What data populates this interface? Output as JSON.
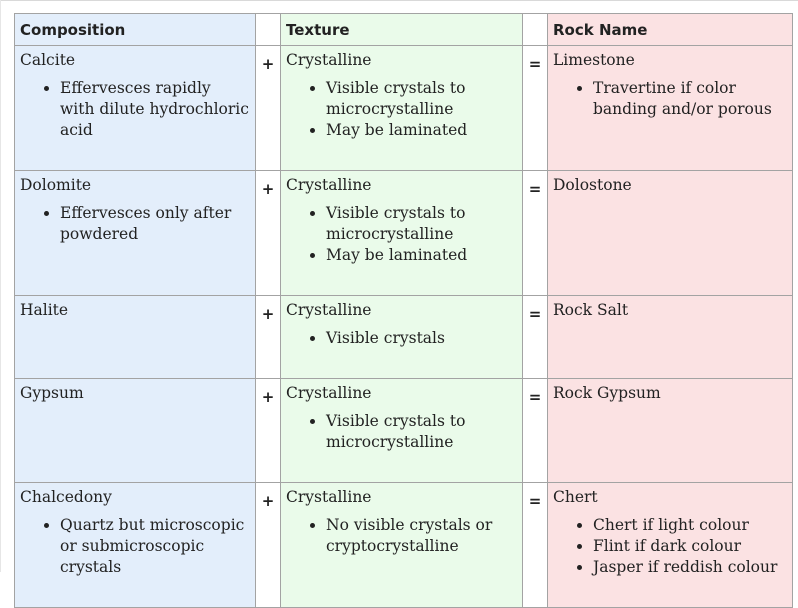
{
  "headers": {
    "composition": "Composition",
    "texture": "Texture",
    "rock_name": "Rock Name"
  },
  "operators": {
    "plus": "+",
    "equals": "="
  },
  "rows": [
    {
      "composition": "Calcite",
      "composition_notes": [
        "Effervesces rapidly with dilute hydrochloric acid"
      ],
      "texture": "Crystalline",
      "texture_notes": [
        "Visible crystals to microcrystalline",
        "May be laminated"
      ],
      "rock": "Limestone",
      "rock_notes": [
        "Travertine if color banding and/or porous"
      ]
    },
    {
      "composition": "Dolomite",
      "composition_notes": [
        "Effervesces only after powdered"
      ],
      "texture": "Crystalline",
      "texture_notes": [
        "Visible crystals to microcrystalline",
        "May be laminated"
      ],
      "rock": "Dolostone",
      "rock_notes": []
    },
    {
      "composition": "Halite",
      "composition_notes": [],
      "texture": "Crystalline",
      "texture_notes": [
        "Visible crystals"
      ],
      "rock": "Rock Salt",
      "rock_notes": []
    },
    {
      "composition": "Gypsum",
      "composition_notes": [],
      "texture": "Crystalline",
      "texture_notes": [
        "Visible crystals to microcrystalline"
      ],
      "rock": "Rock Gypsum",
      "rock_notes": []
    },
    {
      "composition": "Chalcedony",
      "composition_notes": [
        "Quartz but microscopic or submicroscopic crystals"
      ],
      "texture": "Crystalline",
      "texture_notes": [
        "No visible crystals or cryptocrystalline"
      ],
      "rock": "Chert",
      "rock_notes": [
        "Chert if light colour",
        "Flint if dark colour",
        "Jasper if reddish colour"
      ]
    }
  ],
  "colors": {
    "composition_bg": "#e3eefb",
    "texture_bg": "#eafbea",
    "rock_bg": "#fbe2e3",
    "border": "#a3a3a3"
  }
}
